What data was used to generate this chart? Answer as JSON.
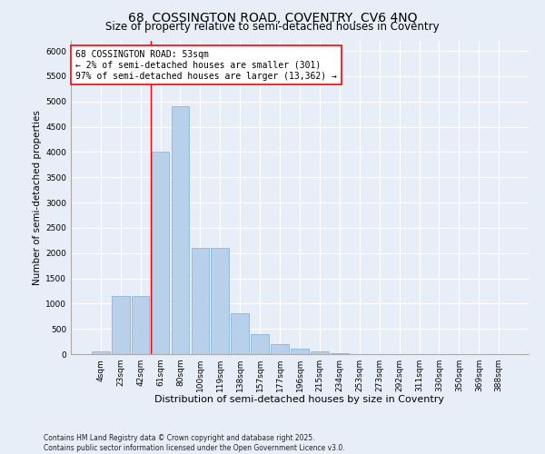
{
  "title_line1": "68, COSSINGTON ROAD, COVENTRY, CV6 4NQ",
  "title_line2": "Size of property relative to semi-detached houses in Coventry",
  "xlabel": "Distribution of semi-detached houses by size in Coventry",
  "ylabel": "Number of semi-detached properties",
  "categories": [
    "4sqm",
    "23sqm",
    "42sqm",
    "61sqm",
    "80sqm",
    "100sqm",
    "119sqm",
    "138sqm",
    "157sqm",
    "177sqm",
    "196sqm",
    "215sqm",
    "234sqm",
    "253sqm",
    "273sqm",
    "292sqm",
    "311sqm",
    "330sqm",
    "350sqm",
    "369sqm",
    "388sqm"
  ],
  "values": [
    50,
    1150,
    1150,
    4000,
    4900,
    2100,
    2100,
    800,
    390,
    200,
    100,
    50,
    25,
    5,
    2,
    0,
    0,
    0,
    0,
    0,
    0
  ],
  "bar_color": "#b8d0ea",
  "bar_edge_color": "#7aaed6",
  "property_line_x": 2.5,
  "annotation_text": "68 COSSINGTON ROAD: 53sqm\n← 2% of semi-detached houses are smaller (301)\n97% of semi-detached houses are larger (13,362) →",
  "annotation_box_color": "white",
  "annotation_box_edge_color": "red",
  "vline_color": "red",
  "ylim": [
    0,
    6200
  ],
  "yticks": [
    0,
    500,
    1000,
    1500,
    2000,
    2500,
    3000,
    3500,
    4000,
    4500,
    5000,
    5500,
    6000
  ],
  "background_color": "#e8eef8",
  "plot_bg_color": "#e8eef8",
  "grid_color": "white",
  "footer": "Contains HM Land Registry data © Crown copyright and database right 2025.\nContains public sector information licensed under the Open Government Licence v3.0.",
  "title_fontsize": 10,
  "subtitle_fontsize": 8.5,
  "xlabel_fontsize": 8,
  "ylabel_fontsize": 7.5,
  "tick_fontsize": 6.5,
  "annotation_fontsize": 7,
  "footer_fontsize": 5.5
}
